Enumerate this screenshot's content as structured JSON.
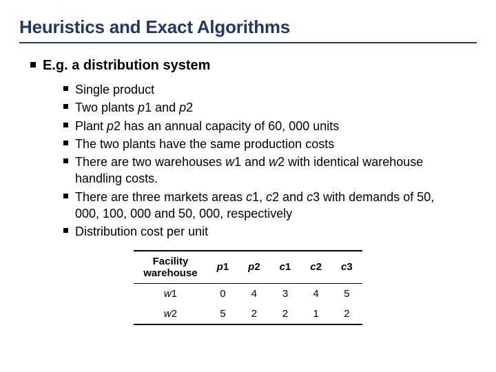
{
  "title": "Heuristics and Exact Algorithms",
  "lvl1": "E.g. a distribution system",
  "bullets": {
    "b1": "Single product",
    "b2_pre": "Two plants ",
    "b2_p1": "p",
    "b2_1": "1 and ",
    "b2_p2": "p",
    "b2_2": "2",
    "b3_pre": "Plant ",
    "b3_p": "p",
    "b3_post": "2 has an annual capacity of 60, 000 units",
    "b4": "The two plants have the same production costs",
    "b5_pre": "There are two warehouses ",
    "b5_w1": "w",
    "b5_1": "1 and ",
    "b5_w2": "w",
    "b5_2": "2 with identical warehouse handling costs.",
    "b6_pre": "There are three markets areas ",
    "b6_c1": "c",
    "b6_1": "1, ",
    "b6_c2": "c",
    "b6_2": "2 and ",
    "b6_c3": "c",
    "b6_3": "3 with demands of 50, 000, 100, 000 and 50, 000, respectively",
    "b7": "Distribution cost per unit"
  },
  "table": {
    "header": {
      "facility_line1": "Facility",
      "facility_line2": "warehouse",
      "p": "p",
      "c": "c",
      "n1": "1",
      "n2": "2",
      "n3": "3"
    },
    "rows": [
      {
        "w": "w",
        "wn": "1",
        "cells": [
          "0",
          "4",
          "3",
          "4",
          "5"
        ]
      },
      {
        "w": "w",
        "wn": "2",
        "cells": [
          "5",
          "2",
          "2",
          "1",
          "2"
        ]
      }
    ]
  },
  "colors": {
    "title": "#1f3864",
    "rule": "#1f3864",
    "text": "#000000",
    "background": "#ffffff"
  }
}
